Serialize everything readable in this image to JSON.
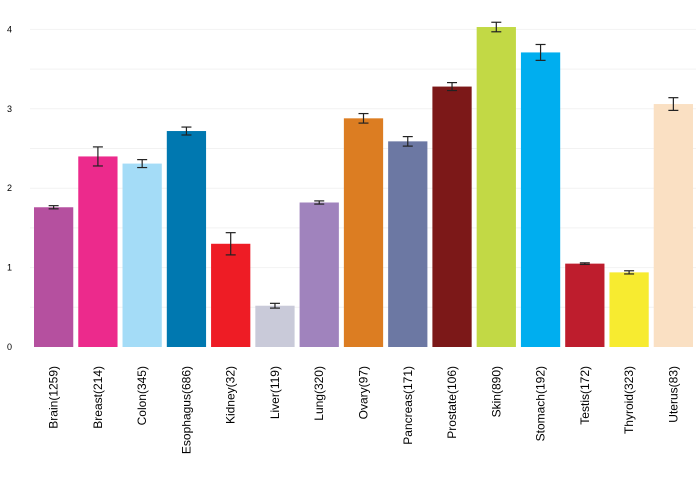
{
  "chart_data": {
    "type": "bar",
    "title": "",
    "xlabel": "",
    "ylabel": "",
    "ylim": [
      0,
      4.2
    ],
    "yticks": [
      0,
      1,
      2,
      3,
      4
    ],
    "grid": "horizontal",
    "error_bars": true,
    "categories": [
      "Brain(1259)",
      "Breast(214)",
      "Colon(345)",
      "Esophagus(686)",
      "Kidney(32)",
      "Liver(119)",
      "Lung(320)",
      "Ovary(97)",
      "Pancreas(171)",
      "Prostate(106)",
      "Skin(890)",
      "Stomach(192)",
      "Testis(172)",
      "Thyroid(323)",
      "Uterus(83)"
    ],
    "values": [
      1.76,
      2.4,
      2.31,
      2.72,
      1.3,
      0.52,
      1.82,
      2.88,
      2.59,
      3.28,
      4.03,
      3.71,
      1.05,
      0.94,
      3.06
    ],
    "errors": [
      0.02,
      0.12,
      0.05,
      0.05,
      0.14,
      0.03,
      0.02,
      0.06,
      0.06,
      0.05,
      0.06,
      0.1,
      0.01,
      0.02,
      0.08
    ],
    "colors": [
      "#b5509f",
      "#ec2a8c",
      "#a4dcf7",
      "#0078b0",
      "#ee1c25",
      "#c9cad9",
      "#a083bd",
      "#dc7d22",
      "#6c78a3",
      "#7c1818",
      "#c2d945",
      "#00aeef",
      "#be1d2d",
      "#f7eb30",
      "#fae0c3"
    ]
  }
}
